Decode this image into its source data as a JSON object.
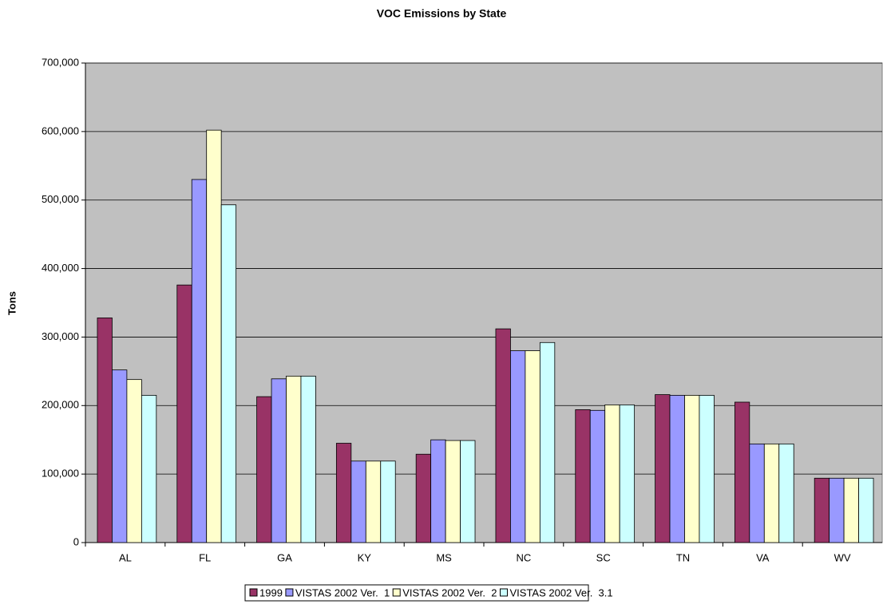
{
  "chart_data": {
    "type": "bar",
    "title": "VOC Emissions by State",
    "y_label": "Tons",
    "categories": [
      "AL",
      "FL",
      "GA",
      "KY",
      "MS",
      "NC",
      "SC",
      "TN",
      "VA",
      "WV"
    ],
    "series": [
      {
        "name": "1999",
        "color": "#993366",
        "values": [
          328000,
          376000,
          213000,
          145000,
          129000,
          312000,
          194000,
          216000,
          205000,
          94000
        ]
      },
      {
        "name": "VISTAS 2002 Ver.  1",
        "color": "#9999ff",
        "values": [
          252000,
          530000,
          239000,
          119000,
          150000,
          280000,
          193000,
          215000,
          144000,
          94000
        ]
      },
      {
        "name": "VISTAS 2002 Ver.  2",
        "color": "#ffffcc",
        "values": [
          238000,
          602000,
          243000,
          119000,
          149000,
          280000,
          201000,
          215000,
          144000,
          94000
        ]
      },
      {
        "name": "VISTAS 2002 Ver.  3.1",
        "color": "#ccffff",
        "values": [
          215000,
          493000,
          243000,
          119000,
          149000,
          292000,
          201000,
          215000,
          144000,
          94000
        ]
      }
    ],
    "ylim": [
      0,
      700000
    ],
    "yticks": [
      0,
      {
        "value": 100000,
        "label": "100,000"
      },
      {
        "value": 200000,
        "label": "200,000"
      },
      {
        "value": 300000,
        "label": "300,000"
      },
      {
        "value": 400000,
        "label": "400,000"
      },
      {
        "value": 500000,
        "label": "500,000"
      },
      {
        "value": 600000,
        "label": "600,000"
      },
      {
        "value": 700000,
        "label": "700,000"
      }
    ],
    "grid": true,
    "legend": "bottom",
    "plot_background": "#c0c0c0"
  }
}
